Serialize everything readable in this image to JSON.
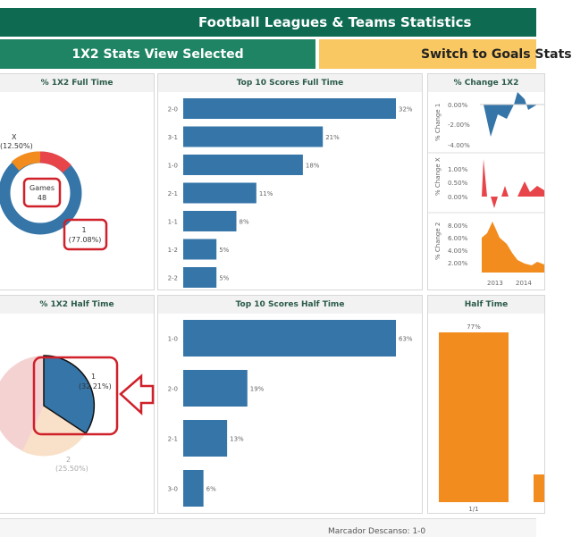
{
  "header": {
    "title": "Football Leagues & Teams Statistics"
  },
  "buttons": {
    "left": "1X2 Stats View Selected",
    "right": "Switch to Goals Stats"
  },
  "panels": {
    "ft_pie_title": "% 1X2 Full Time",
    "ft_scores_title": "Top 10 Scores Full Time",
    "change_title": "% Change 1X2",
    "ht_pie_title": "% 1X2 Half Time",
    "ht_scores_title": "Top 10 Scores Half Time",
    "ht_bar_title": "Half Time"
  },
  "ft_donut": {
    "x_label": "X",
    "x_pct": "(12.50%)",
    "games_label": "Games",
    "games_value": "48",
    "one_label": "1",
    "one_pct": "(77.08%)"
  },
  "ht_pie": {
    "one_label": "1",
    "one_pct": "(32.21%)",
    "two_label": "2",
    "two_pct": "(25.50%)"
  },
  "chart_data": [
    {
      "type": "bar",
      "title": "Top 10 Scores Full Time",
      "categories": [
        "2-0",
        "3-1",
        "1-0",
        "2-1",
        "1-1",
        "1-2",
        "2-2"
      ],
      "values": [
        32,
        21,
        18,
        11,
        8,
        5,
        5
      ],
      "labels": [
        "32%",
        "21%",
        "18%",
        "11%",
        "8%",
        "5%",
        "5%"
      ],
      "color": "#3575a8"
    },
    {
      "type": "bar",
      "title": "Top 10 Scores Half Time",
      "categories": [
        "1-0",
        "2-0",
        "2-1",
        "3-0"
      ],
      "values": [
        63,
        19,
        13,
        6
      ],
      "labels": [
        "63%",
        "19%",
        "13%",
        "6%"
      ],
      "color": "#3575a8"
    },
    {
      "type": "area",
      "title": "% Change 1X2",
      "panes": [
        {
          "ylabel": "% Change 1",
          "ticks": [
            "0.00%",
            "-2.00%",
            "-4.00%"
          ],
          "color": "#3575a8"
        },
        {
          "ylabel": "% Change X",
          "ticks": [
            "1.00%",
            "0.50%",
            "0.00%"
          ],
          "color": "#e8454a"
        },
        {
          "ylabel": "% Change 2",
          "ticks": [
            "8.00%",
            "6.00%",
            "4.00%",
            "2.00%"
          ],
          "color": "#f28c1e"
        }
      ],
      "x_ticks": [
        "2013",
        "2014"
      ]
    },
    {
      "type": "bar",
      "title": "Half Time",
      "categories": [
        "1/1"
      ],
      "values": [
        77
      ],
      "labels": [
        "77%"
      ],
      "color": "#f28c1e"
    }
  ],
  "bottom": {
    "text": "Marcador Descanso: 1-0"
  }
}
